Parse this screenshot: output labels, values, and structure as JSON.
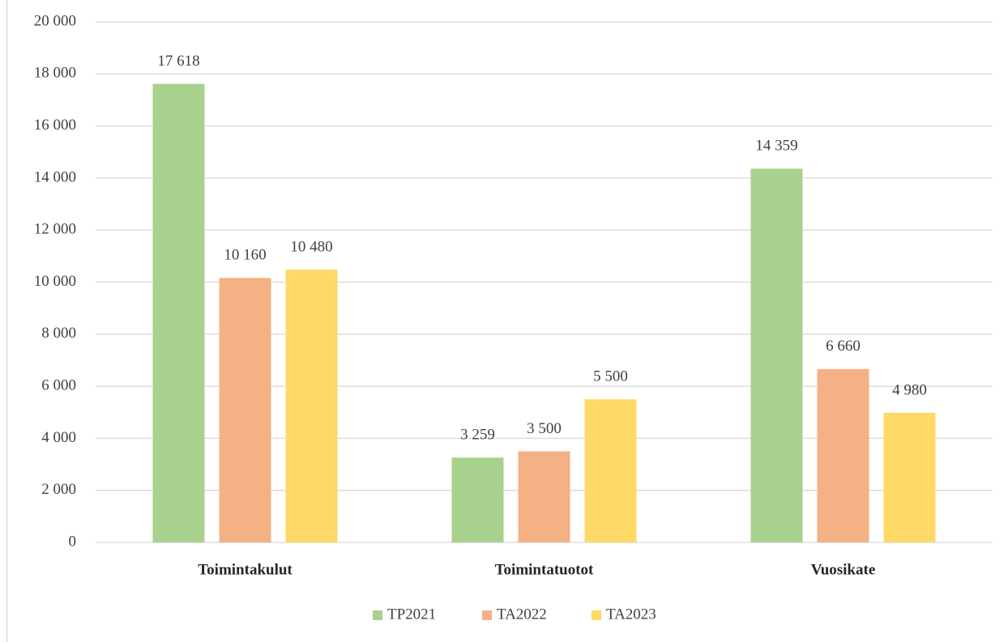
{
  "chart_data": {
    "type": "bar",
    "categories": [
      "Toimintakulut",
      "Toimintatuotot",
      "Vuosikate"
    ],
    "series": [
      {
        "name": "TP2021",
        "color": "#a9d18e",
        "values": [
          17618,
          3259,
          14359
        ],
        "value_labels": [
          "17 618",
          "3 259",
          "14 359"
        ]
      },
      {
        "name": "TA2022",
        "color": "#f4b183",
        "values": [
          10160,
          3500,
          6660
        ],
        "value_labels": [
          "10 160",
          "3 500",
          "6 660"
        ]
      },
      {
        "name": "TA2023",
        "color": "#ffd966",
        "values": [
          10480,
          5500,
          4980
        ],
        "value_labels": [
          "10 480",
          "5 500",
          "4 980"
        ]
      }
    ],
    "ylim": [
      0,
      20000
    ],
    "yticks": [
      0,
      {
        "value": 2000,
        "label": "2 000"
      },
      {
        "value": 4000,
        "label": "4 000"
      },
      {
        "value": 6000,
        "label": "6 000"
      },
      {
        "value": 8000,
        "label": "8 000"
      },
      {
        "value": 10000,
        "label": "10 000"
      },
      {
        "value": 12000,
        "label": "12 000"
      },
      {
        "value": 14000,
        "label": "14 000"
      },
      {
        "value": 16000,
        "label": "16 000"
      },
      {
        "value": 18000,
        "label": "18 000"
      },
      {
        "value": 20000,
        "label": "20 000"
      }
    ],
    "grid": true,
    "legend": "bottom"
  }
}
